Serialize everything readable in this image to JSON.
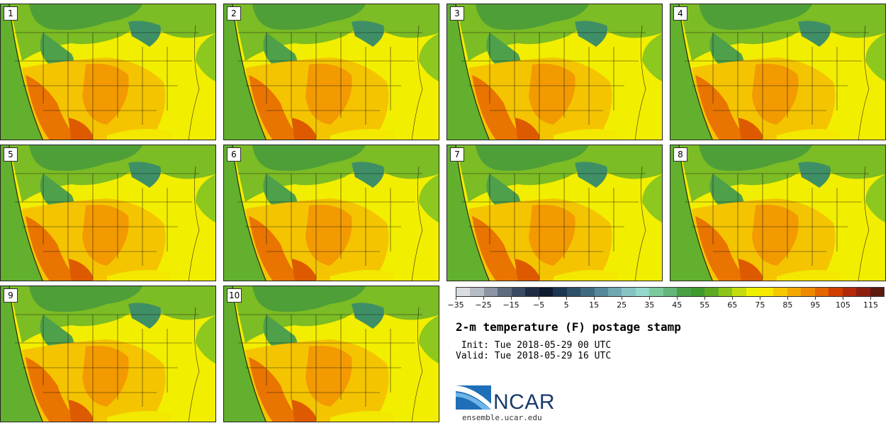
{
  "panels": [
    {
      "label": "1"
    },
    {
      "label": "2"
    },
    {
      "label": "3"
    },
    {
      "label": "4"
    },
    {
      "label": "5"
    },
    {
      "label": "6"
    },
    {
      "label": "7"
    },
    {
      "label": "8"
    },
    {
      "label": "9"
    },
    {
      "label": "10"
    }
  ],
  "colorbar": {
    "colors": [
      "#d9dde2",
      "#b6bcc4",
      "#8c95a3",
      "#5f6b80",
      "#3b4a63",
      "#1f2c43",
      "#0e1a2d",
      "#1b3650",
      "#2e5068",
      "#3f6a80",
      "#558898",
      "#6fa8b0",
      "#86c3c2",
      "#94d8cd",
      "#7cca9c",
      "#64b57b",
      "#4a9f45",
      "#3f9a2e",
      "#5caa22",
      "#8ec41a",
      "#c4dc10",
      "#edf000",
      "#f8e800",
      "#f5c800",
      "#f3a800",
      "#ef8a00",
      "#e56500",
      "#cf3f00",
      "#b22a0a",
      "#8e1f10",
      "#5e1a10"
    ],
    "tick_labels": [
      "-35",
      "-25",
      "-15",
      "-5",
      "5",
      "15",
      "25",
      "35",
      "45",
      "55",
      "65",
      "75",
      "85",
      "95",
      "105",
      "115"
    ]
  },
  "header": {
    "title": "2-m temperature (F) postage stamp",
    "init": " Init: Tue 2018-05-29 00 UTC",
    "valid": "Valid: Tue 2018-05-29 16 UTC"
  },
  "footer": {
    "logo_text": "NCAR",
    "url": "ensemble.ucar.edu"
  }
}
